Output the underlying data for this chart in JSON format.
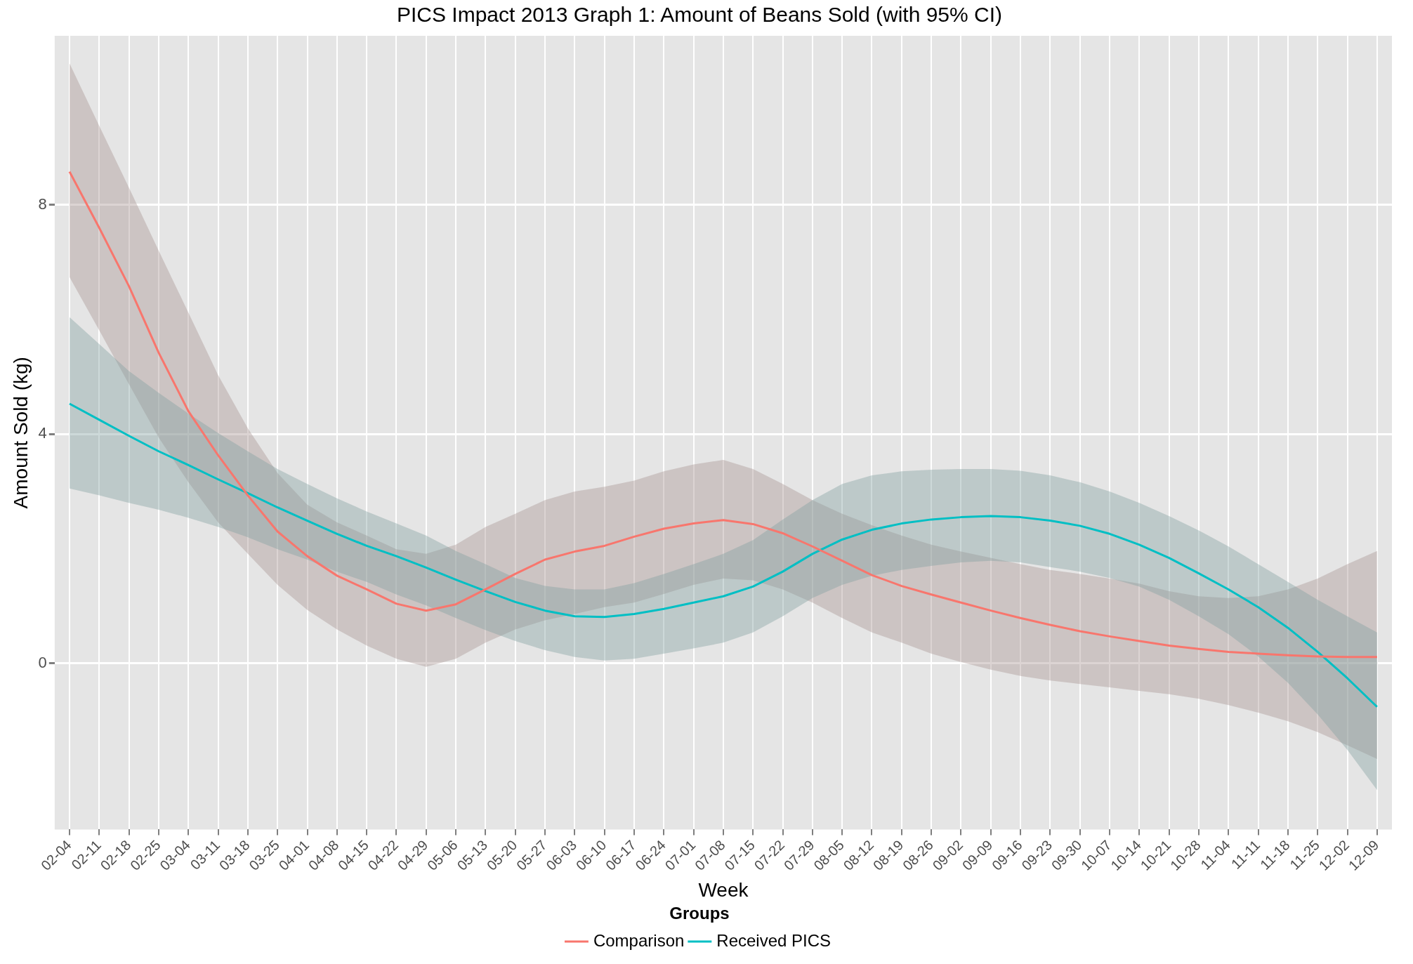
{
  "chart_data": {
    "type": "line",
    "title": "PICS Impact 2013 Graph 1: Amount of Beans Sold (with 95% CI)",
    "xlabel": "Week",
    "ylabel": "Amount Sold (kg)",
    "legend_title": "Groups",
    "categories": [
      "02-04",
      "02-11",
      "02-18",
      "02-25",
      "03-04",
      "03-11",
      "03-18",
      "03-25",
      "04-01",
      "04-08",
      "04-15",
      "04-22",
      "04-29",
      "05-06",
      "05-13",
      "05-20",
      "05-27",
      "06-03",
      "06-10",
      "06-17",
      "06-24",
      "07-01",
      "07-08",
      "07-15",
      "07-22",
      "07-29",
      "08-05",
      "08-12",
      "08-19",
      "08-26",
      "09-02",
      "09-09",
      "09-16",
      "09-23",
      "09-30",
      "10-07",
      "10-14",
      "10-21",
      "10-28",
      "11-04",
      "11-11",
      "11-18",
      "11-25",
      "12-02",
      "12-09"
    ],
    "series": [
      {
        "name": "Comparison",
        "color": "#f8766d",
        "values": [
          8.58,
          7.6,
          6.58,
          5.42,
          4.4,
          3.63,
          2.93,
          2.3,
          1.87,
          1.53,
          1.29,
          1.04,
          0.92,
          1.03,
          1.29,
          1.56,
          1.81,
          1.95,
          2.05,
          2.21,
          2.35,
          2.44,
          2.5,
          2.43,
          2.27,
          2.04,
          1.79,
          1.54,
          1.35,
          1.2,
          1.06,
          0.92,
          0.79,
          0.67,
          0.56,
          0.47,
          0.39,
          0.31,
          0.25,
          0.2,
          0.17,
          0.14,
          0.12,
          0.11,
          0.11
        ],
        "upper": [
          10.47,
          9.38,
          8.3,
          7.2,
          6.12,
          5.03,
          4.1,
          3.32,
          2.77,
          2.46,
          2.23,
          1.99,
          1.91,
          2.07,
          2.38,
          2.61,
          2.85,
          3.0,
          3.08,
          3.19,
          3.35,
          3.47,
          3.55,
          3.39,
          3.13,
          2.85,
          2.61,
          2.41,
          2.23,
          2.07,
          1.95,
          1.84,
          1.73,
          1.63,
          1.56,
          1.48,
          1.39,
          1.26,
          1.17,
          1.14,
          1.17,
          1.29,
          1.48,
          1.73,
          1.96
        ],
        "lower": [
          6.74,
          5.81,
          4.87,
          3.94,
          3.16,
          2.46,
          1.91,
          1.37,
          0.93,
          0.59,
          0.31,
          0.08,
          -0.06,
          0.08,
          0.36,
          0.59,
          0.75,
          0.86,
          0.98,
          1.06,
          1.21,
          1.37,
          1.48,
          1.45,
          1.29,
          1.06,
          0.79,
          0.54,
          0.36,
          0.17,
          0.02,
          -0.11,
          -0.22,
          -0.3,
          -0.36,
          -0.42,
          -0.48,
          -0.54,
          -0.62,
          -0.73,
          -0.86,
          -1.01,
          -1.2,
          -1.43,
          -1.67
        ]
      },
      {
        "name": "Received PICS",
        "color": "#00bfc4",
        "values": [
          4.53,
          4.25,
          3.97,
          3.7,
          3.46,
          3.21,
          2.97,
          2.72,
          2.49,
          2.26,
          2.05,
          1.87,
          1.67,
          1.46,
          1.26,
          1.07,
          0.92,
          0.82,
          0.81,
          0.86,
          0.95,
          1.06,
          1.17,
          1.34,
          1.6,
          1.91,
          2.16,
          2.33,
          2.44,
          2.51,
          2.55,
          2.57,
          2.55,
          2.49,
          2.4,
          2.26,
          2.07,
          1.84,
          1.57,
          1.29,
          0.98,
          0.62,
          0.2,
          -0.26,
          -0.76
        ],
        "upper": [
          6.04,
          5.57,
          5.1,
          4.72,
          4.36,
          4.02,
          3.7,
          3.39,
          3.13,
          2.88,
          2.65,
          2.44,
          2.23,
          1.96,
          1.73,
          1.49,
          1.35,
          1.29,
          1.29,
          1.4,
          1.56,
          1.73,
          1.91,
          2.15,
          2.51,
          2.85,
          3.13,
          3.28,
          3.35,
          3.38,
          3.39,
          3.39,
          3.36,
          3.28,
          3.16,
          3.0,
          2.8,
          2.57,
          2.32,
          2.04,
          1.73,
          1.42,
          1.11,
          0.82,
          0.54
        ],
        "lower": [
          3.05,
          2.93,
          2.8,
          2.68,
          2.54,
          2.38,
          2.2,
          1.99,
          1.81,
          1.6,
          1.42,
          1.2,
          1.01,
          0.79,
          0.58,
          0.39,
          0.23,
          0.11,
          0.05,
          0.08,
          0.17,
          0.26,
          0.36,
          0.54,
          0.82,
          1.14,
          1.37,
          1.53,
          1.63,
          1.7,
          1.76,
          1.79,
          1.76,
          1.68,
          1.6,
          1.49,
          1.34,
          1.11,
          0.82,
          0.51,
          0.12,
          -0.34,
          -0.89,
          -1.51,
          -2.21
        ]
      }
    ],
    "ylim": [
      -2.9,
      10.95
    ],
    "yticks": [
      0,
      4,
      8
    ],
    "grid": true,
    "legend": "bottom",
    "marker": "none",
    "line_style": "solid"
  }
}
